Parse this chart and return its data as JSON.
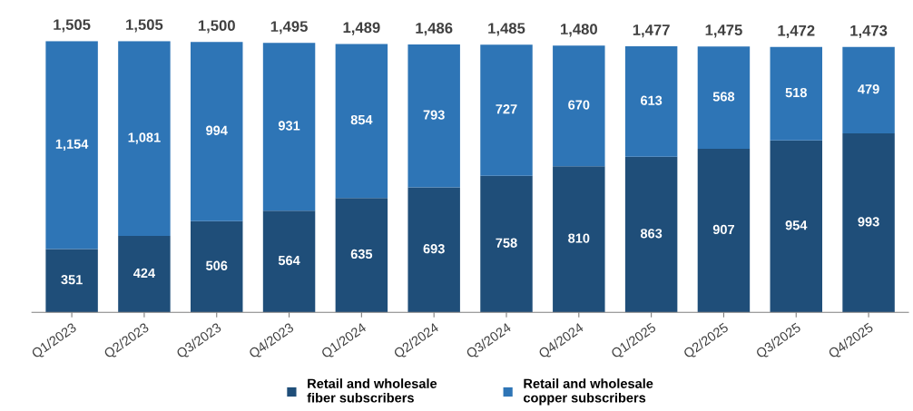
{
  "chart_data": {
    "type": "bar",
    "stacked": true,
    "legend": "bottom",
    "grid": false,
    "categories": [
      "Q1/2023",
      "Q2/2023",
      "Q3/2023",
      "Q4/2023",
      "Q1/2024",
      "Q2/2024",
      "Q3/2024",
      "Q4/2024",
      "Q1/2025",
      "Q2/2025",
      "Q3/2025",
      "Q4/2025"
    ],
    "series": [
      {
        "name": "Retail and wholesale\nfiber subscribers",
        "color": "#1f4e79",
        "values": [
          351,
          424,
          506,
          564,
          635,
          693,
          758,
          810,
          863,
          907,
          954,
          993
        ],
        "value_labels": [
          "351",
          "424",
          "506",
          "564",
          "635",
          "693",
          "758",
          "810",
          "863",
          "907",
          "954",
          "993"
        ]
      },
      {
        "name": "Retail and wholesale\ncopper subscribers",
        "color": "#2e75b6",
        "values": [
          1154,
          1081,
          994,
          931,
          854,
          793,
          727,
          670,
          613,
          568,
          518,
          479
        ],
        "value_labels": [
          "1,154",
          "1,081",
          "994",
          "931",
          "854",
          "793",
          "727",
          "670",
          "613",
          "568",
          "518",
          "479"
        ]
      }
    ],
    "totals": [
      "1,505",
      "1,505",
      "1,500",
      "1,495",
      "1,489",
      "1,486",
      "1,485",
      "1,480",
      "1,477",
      "1,475",
      "1,472",
      "1,473"
    ]
  }
}
